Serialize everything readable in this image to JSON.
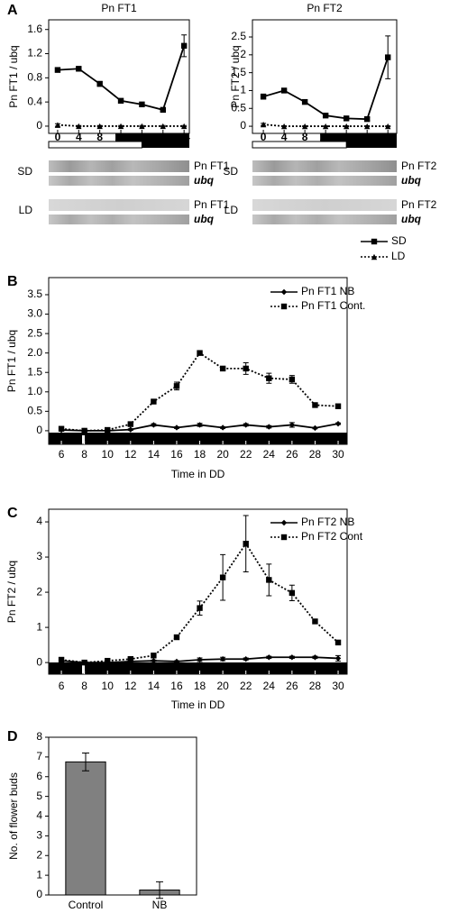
{
  "panel_labels": [
    "A",
    "B",
    "C",
    "D"
  ],
  "blots": [
    {
      "rows": [
        "SD",
        "LD"
      ],
      "gene": "Pn FT1",
      "ref": "ubq"
    },
    {
      "rows": [
        "SD",
        "LD"
      ],
      "gene": "Pn FT2",
      "ref": "ubq"
    }
  ],
  "chart_data": [
    {
      "type": "line",
      "title": "Pn FT1",
      "ylabel": "Pn FT1 / ubq",
      "x": [
        0,
        4,
        8,
        12,
        16,
        20,
        24
      ],
      "xlim": [
        -1.7,
        25
      ],
      "xticks": [
        0,
        4,
        8,
        12,
        16,
        20,
        24
      ],
      "ylim": [
        -0.12,
        1.76
      ],
      "yticks": [
        0,
        0.4,
        0.8,
        1.2,
        1.6
      ],
      "series": [
        {
          "name": "SD",
          "color": "#000000",
          "marker": "square",
          "linestyle": "solid",
          "values": [
            0.93,
            0.95,
            0.7,
            0.42,
            0.36,
            0.27,
            1.33
          ],
          "errors": [
            0.02,
            0.02,
            0.04,
            0.03,
            0.02,
            0.01,
            0.18
          ]
        },
        {
          "name": "LD",
          "color": "#000000",
          "marker": "triangle",
          "linestyle": "dotted",
          "values": [
            0.02,
            0.0,
            0.0,
            0.0,
            0.0,
            0.0,
            0.0
          ],
          "errors": [
            0.02,
            0.01,
            0.01,
            0.01,
            0.01,
            0.01,
            0.01
          ]
        }
      ]
    },
    {
      "type": "line",
      "title": "Pn FT2",
      "ylabel": "Pn FT2 / ubq",
      "x": [
        0,
        4,
        8,
        12,
        16,
        20,
        24
      ],
      "xlim": [
        -2.1,
        25.7
      ],
      "xticks": [
        0,
        4,
        8,
        12,
        16,
        20,
        24
      ],
      "ylim": [
        -0.2,
        2.98
      ],
      "yticks": [
        0,
        0.5,
        1,
        1.5,
        2,
        2.5
      ],
      "series": [
        {
          "color": "#000000",
          "marker": "square",
          "linestyle": "solid",
          "values": [
            0.83,
            1.0,
            0.68,
            0.3,
            0.22,
            0.2,
            1.93
          ],
          "errors": [
            0.07,
            0.03,
            0.06,
            0.03,
            0.04,
            0.04,
            0.6
          ]
        },
        {
          "color": "#000000",
          "marker": "triangle",
          "linestyle": "dotted",
          "values": [
            0.05,
            0.0,
            0.0,
            0.0,
            0.0,
            0.0,
            0.0
          ],
          "errors": [
            0.03,
            0.01,
            0.01,
            0.01,
            0.01,
            0.01,
            0.01
          ]
        }
      ]
    },
    {
      "type": "line",
      "ylabel": "Pn FT1 / ubq",
      "xlabel": "Time in DD",
      "x": [
        6,
        8,
        10,
        12,
        14,
        16,
        18,
        20,
        22,
        24,
        26,
        28,
        30
      ],
      "xlim": [
        4.9,
        30.78
      ],
      "xticks": [
        6,
        8,
        10,
        12,
        14,
        16,
        18,
        20,
        22,
        24,
        26,
        28,
        30
      ],
      "ylim": [
        -0.35,
        3.94
      ],
      "yticks": [
        0,
        0.5,
        {
          "value": 1,
          "label": "1.0"
        },
        1.5,
        {
          "value": 2,
          "label": "2.0"
        },
        2.5,
        {
          "value": 3,
          "label": "3.0"
        },
        3.5
      ],
      "series": [
        {
          "name": "Pn FT1 NB",
          "color": "#000000",
          "marker": "diamond",
          "linestyle": "solid",
          "values": [
            0.02,
            0.0,
            0.0,
            0.03,
            0.15,
            0.08,
            0.15,
            0.08,
            0.15,
            0.1,
            0.15,
            0.07,
            0.18
          ],
          "errors": [
            0.02,
            0.0,
            0.0,
            0.02,
            0.03,
            0.02,
            0.04,
            0.02,
            0.03,
            0.03,
            0.06,
            0.02,
            0.02
          ]
        },
        {
          "name": "Pn FT1 Cont.",
          "color": "#000000",
          "marker": "square",
          "linestyle": "dotted",
          "values": [
            0.05,
            0.0,
            0.02,
            0.17,
            0.75,
            1.15,
            2.0,
            1.6,
            1.6,
            1.35,
            1.32,
            0.66,
            0.63
          ],
          "errors": [
            0.02,
            0.0,
            0.0,
            0.03,
            0.05,
            0.1,
            0.02,
            0.03,
            0.15,
            0.13,
            0.1,
            0.02,
            0.03
          ]
        }
      ]
    },
    {
      "type": "line",
      "ylabel": "Pn FT2 / ubq",
      "xlabel": "Time in DD",
      "x": [
        6,
        8,
        10,
        12,
        14,
        16,
        18,
        20,
        22,
        24,
        26,
        28,
        30
      ],
      "xlim": [
        4.9,
        30.78
      ],
      "xticks": [
        6,
        8,
        10,
        12,
        14,
        16,
        18,
        20,
        22,
        24,
        26,
        28,
        30
      ],
      "ylim": [
        -0.33,
        4.36
      ],
      "yticks": [
        0,
        1,
        2,
        3,
        4
      ],
      "series": [
        {
          "name": "Pn FT2 NB",
          "color": "#000000",
          "marker": "diamond",
          "linestyle": "solid",
          "values": [
            0.05,
            0.0,
            0.0,
            0.03,
            0.05,
            0.03,
            0.08,
            0.1,
            0.1,
            0.15,
            0.15,
            0.15,
            0.12
          ],
          "errors": [
            0.03,
            0.0,
            0.0,
            0.02,
            0.02,
            0.02,
            0.05,
            0.05,
            0.03,
            0.03,
            0.03,
            0.03,
            0.08
          ]
        },
        {
          "name": "Pn FT2 Cont",
          "color": "#000000",
          "marker": "square",
          "linestyle": "dotted",
          "values": [
            0.08,
            0.0,
            0.05,
            0.1,
            0.2,
            0.72,
            1.55,
            2.42,
            3.38,
            2.35,
            1.98,
            1.17,
            0.57
          ],
          "errors": [
            0.05,
            0.0,
            0.03,
            0.03,
            0.05,
            0.05,
            0.2,
            0.65,
            0.8,
            0.45,
            0.22,
            0.03,
            0.05
          ]
        }
      ]
    },
    {
      "type": "bar",
      "ylabel": "No. of flower buds",
      "color": "#808080",
      "categories": [
        "Control",
        "NB"
      ],
      "values": [
        6.75,
        0.25
      ],
      "errors": [
        0.45,
        0.42
      ],
      "ylim": [
        0,
        8
      ],
      "yticks": [
        0,
        1,
        2,
        3,
        4,
        5,
        6,
        7,
        8
      ]
    }
  ]
}
